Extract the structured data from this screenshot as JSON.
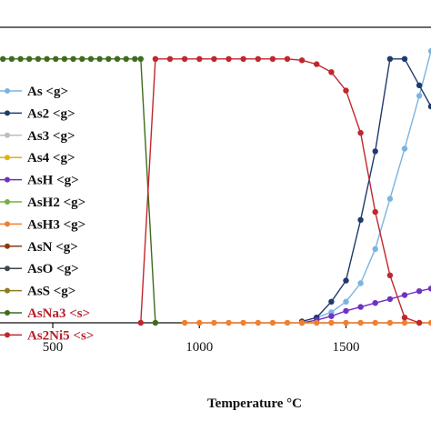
{
  "chart_data": {
    "type": "line",
    "title": "",
    "xlabel": "Temperature °C",
    "ylabel": "",
    "xlim": [
      320,
      1790
    ],
    "ylim": [
      0,
      1.12
    ],
    "xticks": [
      "500",
      "1000",
      "1500"
    ],
    "xtick_values": [
      500,
      1000,
      1500
    ],
    "grid": false,
    "legend_position": "left",
    "series": [
      {
        "name": "As <g>",
        "color": "#7bb4e0",
        "marker": true,
        "x": [
          1400,
          1450,
          1500,
          1550,
          1600,
          1650,
          1700,
          1750,
          1790
        ],
        "y": [
          0.02,
          0.04,
          0.08,
          0.15,
          0.28,
          0.47,
          0.66,
          0.86,
          1.03
        ]
      },
      {
        "name": "As2 <g>",
        "color": "#1f3a6e",
        "marker": true,
        "x": [
          1350,
          1400,
          1450,
          1500,
          1550,
          1600,
          1650,
          1700,
          1750,
          1790
        ],
        "y": [
          0.005,
          0.02,
          0.08,
          0.16,
          0.39,
          0.65,
          1.0,
          1.0,
          0.9,
          0.82
        ]
      },
      {
        "name": "As3 <g>",
        "color": "#bdbdbd",
        "marker": false,
        "x": [],
        "y": []
      },
      {
        "name": "As4 <g>",
        "color": "#e0b400",
        "marker": false,
        "x": [],
        "y": []
      },
      {
        "name": "AsH <g>",
        "color": "#7030c0",
        "marker": true,
        "x": [
          1350,
          1400,
          1450,
          1500,
          1550,
          1600,
          1650,
          1700,
          1750,
          1790
        ],
        "y": [
          0.0,
          0.01,
          0.025,
          0.045,
          0.06,
          0.075,
          0.09,
          0.105,
          0.12,
          0.13
        ]
      },
      {
        "name": "AsH2 <g>",
        "color": "#70b040",
        "marker": false,
        "x": [],
        "y": []
      },
      {
        "name": "AsH3 <g>",
        "color": "#f08030",
        "marker": true,
        "x": [
          950,
          1000,
          1050,
          1100,
          1150,
          1200,
          1250,
          1300,
          1350,
          1400,
          1450,
          1500,
          1550,
          1600,
          1650,
          1700,
          1750,
          1790
        ],
        "y": [
          0,
          0,
          0,
          0,
          0,
          0,
          0,
          0,
          0,
          0,
          0,
          0,
          0,
          0,
          0,
          0,
          0,
          0
        ]
      },
      {
        "name": "AsN <g>",
        "color": "#8a3a12",
        "marker": false,
        "x": [],
        "y": []
      },
      {
        "name": "AsO <g>",
        "color": "#3c4450",
        "marker": false,
        "x": [],
        "y": []
      },
      {
        "name": "AsS <g>",
        "color": "#8a7c20",
        "marker": false,
        "x": [],
        "y": []
      },
      {
        "name": "AsNa3 <s>",
        "color": "#3f6b1e",
        "marker": true,
        "x": [
          330,
          360,
          390,
          420,
          450,
          480,
          510,
          540,
          570,
          600,
          630,
          660,
          690,
          720,
          750,
          780,
          800,
          850
        ],
        "y": [
          1.0,
          1.0,
          1.0,
          1.0,
          1.0,
          1.0,
          1.0,
          1.0,
          1.0,
          1.0,
          1.0,
          1.0,
          1.0,
          1.0,
          1.0,
          1.0,
          1.0,
          0.0
        ]
      },
      {
        "name": "As2Ni5 <s>",
        "color": "#c0262d",
        "marker": true,
        "x": [
          800,
          850,
          900,
          950,
          1000,
          1050,
          1100,
          1150,
          1200,
          1250,
          1300,
          1350,
          1400,
          1450,
          1500,
          1550,
          1600,
          1650,
          1700,
          1750
        ],
        "y": [
          0.0,
          1.0,
          1.0,
          1.0,
          1.0,
          1.0,
          1.0,
          1.0,
          1.0,
          1.0,
          1.0,
          0.995,
          0.98,
          0.95,
          0.88,
          0.72,
          0.42,
          0.18,
          0.02,
          0.0
        ]
      }
    ]
  }
}
